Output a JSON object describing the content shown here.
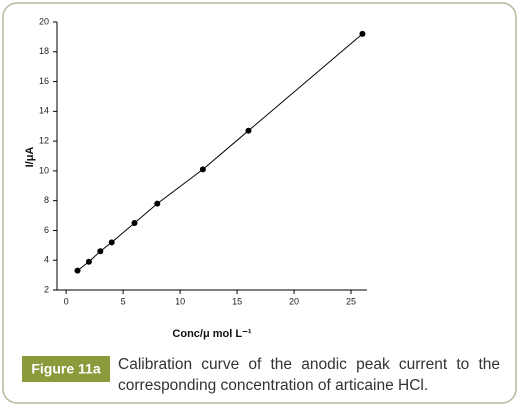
{
  "chart_data": {
    "type": "scatter",
    "line": true,
    "xlabel": "Conc/μ mol L⁻¹",
    "ylabel": "I/μA",
    "x": [
      1,
      2,
      3,
      4,
      6,
      8,
      12,
      16,
      26
    ],
    "values": [
      3.3,
      3.9,
      4.6,
      5.2,
      6.5,
      7.8,
      10.1,
      12.7,
      19.2
    ],
    "color": "#000000",
    "xlim": [
      -0.8,
      26.4
    ],
    "xticks": [
      0,
      5,
      10,
      15,
      20,
      25
    ],
    "ylim": [
      2,
      20
    ],
    "yticks": [
      2,
      4,
      6,
      8,
      10,
      12,
      14,
      16,
      18,
      20
    ]
  },
  "caption": {
    "label": "Figure 11a",
    "text": "Calibration curve of the anodic peak current to the corresponding concentration of articaine HCl."
  }
}
